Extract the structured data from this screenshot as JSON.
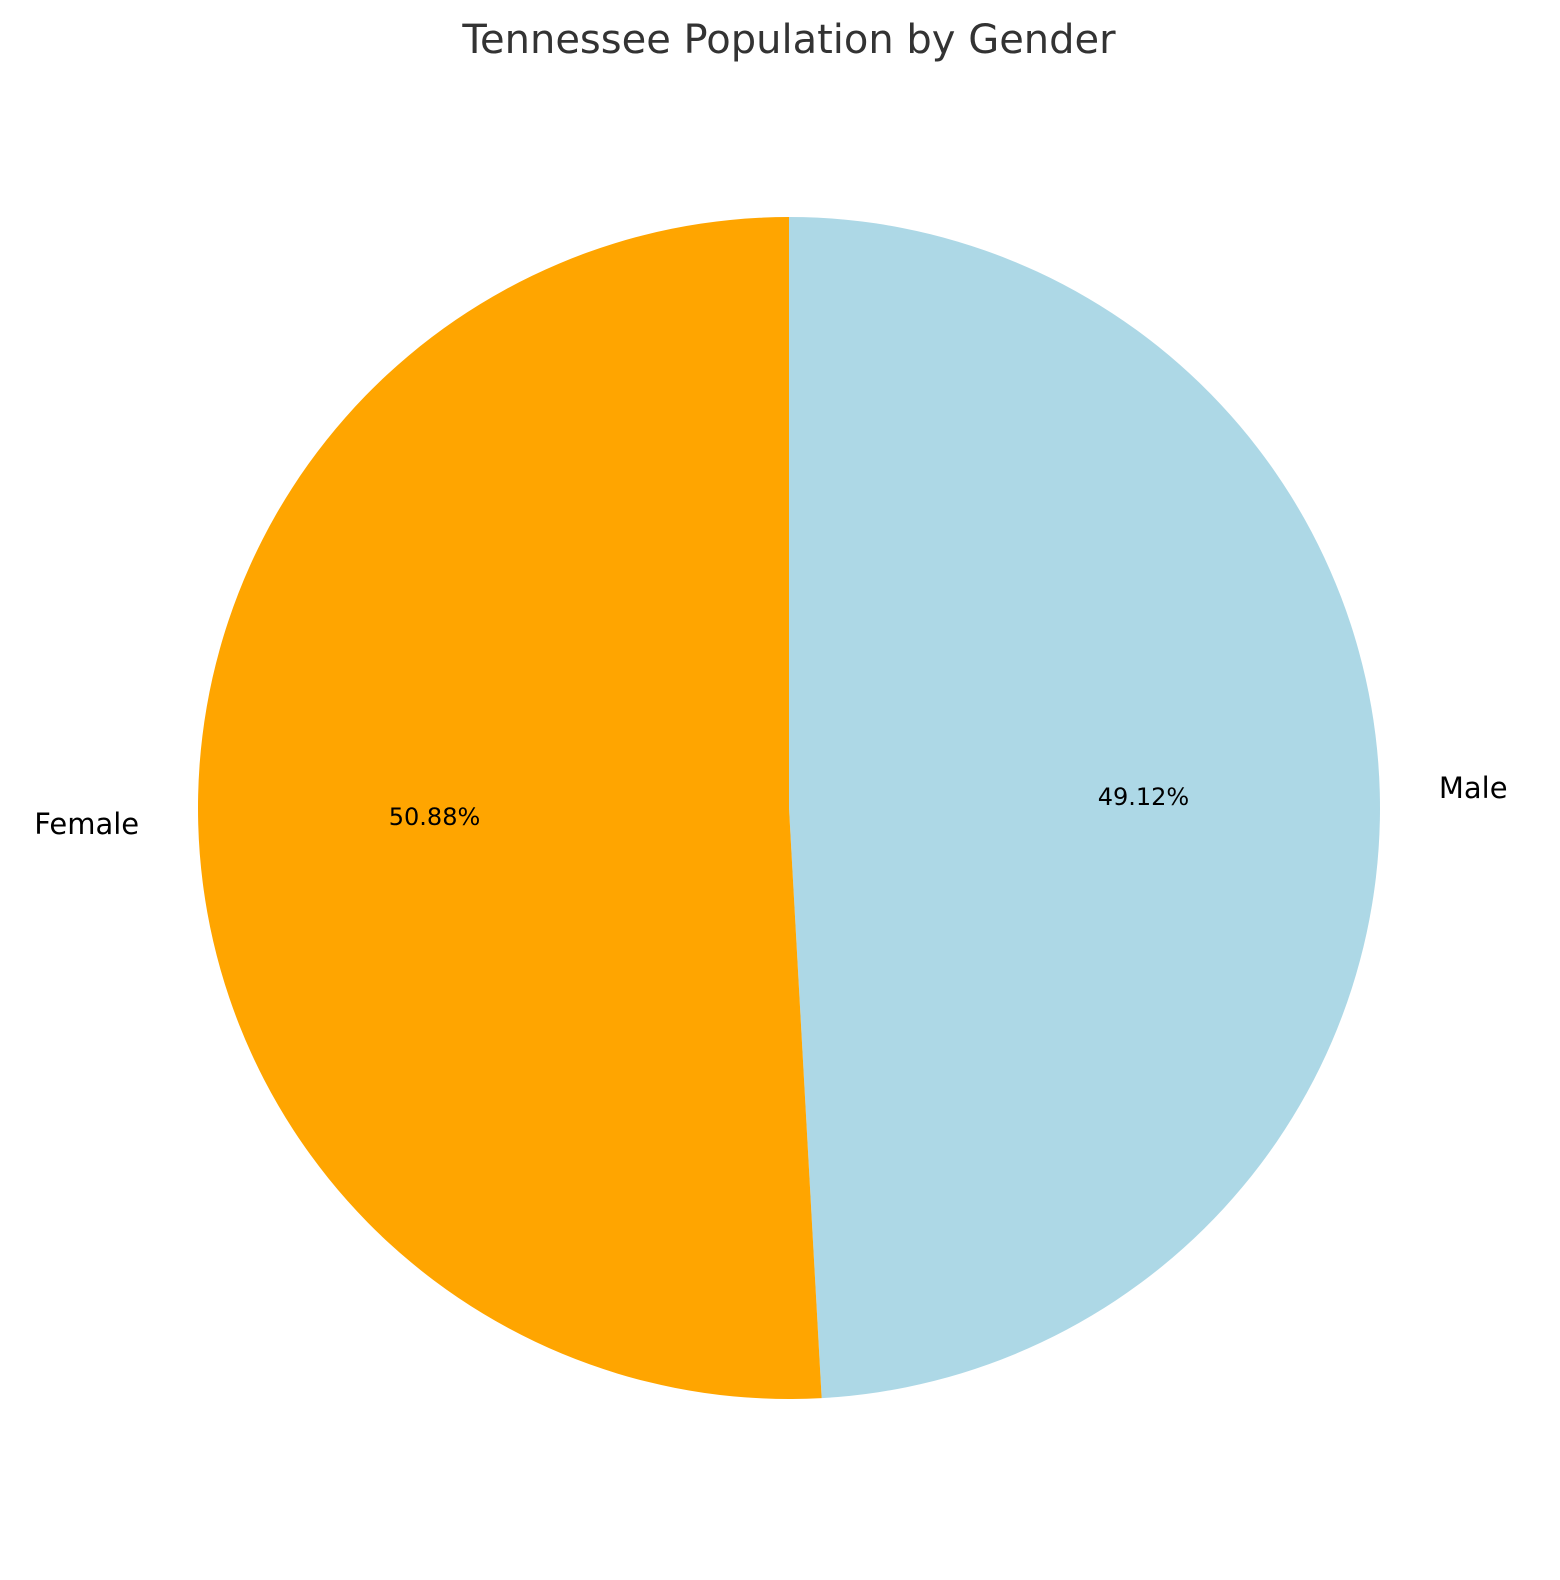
{
  "chart_data": {
    "type": "pie",
    "title": "Tennessee Population by Gender",
    "start_angle_deg": 90,
    "direction": "clockwise",
    "slices": [
      {
        "label": "Male",
        "value": 49.12,
        "pct_label": "49.12%",
        "color": "#add8e6"
      },
      {
        "label": "Female",
        "value": 50.88,
        "pct_label": "50.88%",
        "color": "#ffa500"
      }
    ]
  }
}
